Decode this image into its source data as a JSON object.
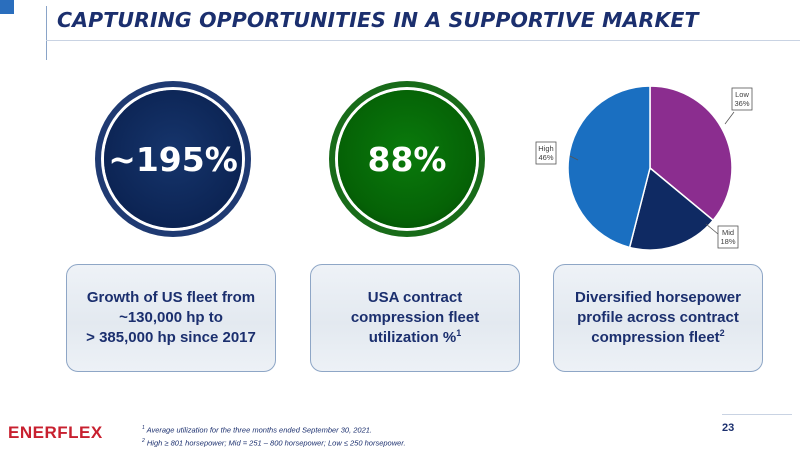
{
  "header": {
    "title": "CAPTURING OPPORTUNITIES IN A SUPPORTIVE MARKET",
    "accent_color": "#2a6ebd",
    "title_color": "#1b2f6e"
  },
  "kpis": [
    {
      "value": "~195%",
      "ring_color": "#1f3a72",
      "fill_color": "#0c2454",
      "caption": [
        "Growth of US fleet from",
        "~130,000 hp to",
        "> 385,000 hp since 2017"
      ]
    },
    {
      "value": "88%",
      "ring_color": "#186b19",
      "fill_color": "#056206",
      "caption": [
        "USA contract",
        "compression fleet",
        "utilization %"
      ],
      "caption_sup": "1"
    },
    {
      "caption": [
        "Diversified horsepower",
        "profile across contract",
        "compression fleet"
      ],
      "caption_sup": "2"
    }
  ],
  "chart_data": {
    "type": "pie",
    "title": "",
    "slices": [
      {
        "label": "Low",
        "value": 36,
        "display": "36%",
        "color": "#8b2d8f"
      },
      {
        "label": "Mid",
        "value": 18,
        "display": "18%",
        "color": "#0f2a63"
      },
      {
        "label": "High",
        "value": 46,
        "display": "46%",
        "color": "#1a6fc1"
      }
    ],
    "start_angle_deg": 0,
    "direction": "clockwise"
  },
  "footer": {
    "logo_text": "ENERFLEX",
    "logo_color": "#c8202f",
    "footnote_1": "Average utilization for the three months ended September 30, 2021.",
    "footnote_2": "High ≥ 801 horsepower; Mid = 251 – 800 horsepower; Low ≤ 250 horsepower.",
    "footnote_1_mark": "1",
    "footnote_2_mark": "2",
    "page_number": "23"
  }
}
